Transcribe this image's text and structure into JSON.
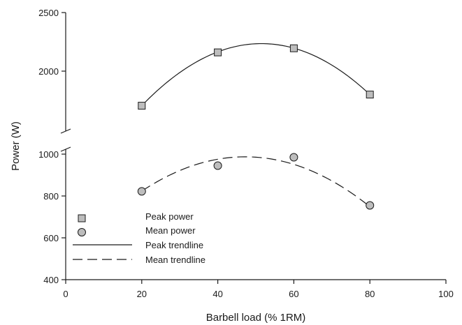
{
  "chart_data": {
    "type": "scatter",
    "title": "",
    "xlabel": "Barbell load (% 1RM)",
    "ylabel": "Power (W)",
    "xlim": [
      0,
      100
    ],
    "x_ticks": [
      0,
      20,
      40,
      60,
      80,
      100
    ],
    "x_tick_labels": [
      "0",
      "20",
      "40",
      "60",
      "80",
      "100"
    ],
    "y_axis_break": true,
    "y_lower_segment": {
      "range": [
        400,
        1000
      ],
      "ticks": [
        400,
        600,
        800,
        1000
      ],
      "tick_labels": [
        "400",
        "600",
        "800",
        "1000"
      ]
    },
    "y_upper_segment": {
      "range": [
        1500,
        2500
      ],
      "ticks": [
        2000,
        2500
      ],
      "tick_labels": [
        "2000",
        "2500"
      ]
    },
    "grid": false,
    "legend_position": "bottom-left",
    "series": [
      {
        "name": "Peak power",
        "marker": "square",
        "color": "#bdbdbd",
        "segment": "upper",
        "x": [
          20,
          40,
          60,
          80
        ],
        "y": [
          1705,
          2160,
          2195,
          1800
        ]
      },
      {
        "name": "Mean power",
        "marker": "circle",
        "color": "#bdbdbd",
        "segment": "lower",
        "x": [
          20,
          40,
          60,
          80
        ],
        "y": [
          822,
          945,
          985,
          755
        ]
      }
    ],
    "trendlines": [
      {
        "name": "Peak trendline",
        "style": "solid",
        "segment": "upper",
        "x_range": [
          20,
          80
        ],
        "peak_x": 51.6,
        "peak_y": 2235,
        "end_values": [
          1705,
          1800
        ]
      },
      {
        "name": "Mean trendline",
        "style": "dashed",
        "segment": "lower",
        "x_range": [
          20,
          80
        ],
        "peak_x": 48.2,
        "peak_y": 987,
        "end_values": [
          823,
          749
        ]
      }
    ],
    "legend": [
      {
        "label": "Peak power",
        "symbol": "square"
      },
      {
        "label": "Mean power",
        "symbol": "circle"
      },
      {
        "label": "Peak trendline",
        "symbol": "solid-line"
      },
      {
        "label": "Mean trendline",
        "symbol": "dashed-line"
      }
    ]
  }
}
